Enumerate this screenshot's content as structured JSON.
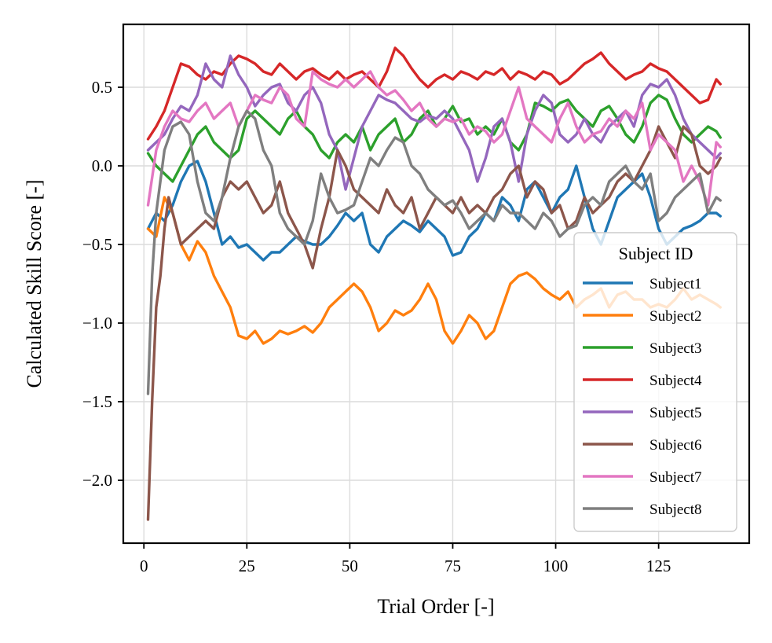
{
  "chart_data": {
    "type": "line",
    "title": "",
    "xlabel": "Trial Order [-]",
    "ylabel": "Calculated Skill Score [-]",
    "xlim": [
      -5,
      147
    ],
    "ylim": [
      -2.4,
      0.9
    ],
    "xticks": [
      0,
      25,
      50,
      75,
      100,
      125
    ],
    "yticks": [
      0.5,
      0.0,
      -0.5,
      -1.0,
      -1.5,
      -2.0
    ],
    "xtick_labels": [
      "0",
      "25",
      "50",
      "75",
      "100",
      "125"
    ],
    "ytick_labels": [
      "0.5",
      "0.0",
      "−0.5",
      "−1.0",
      "−1.5",
      "−2.0"
    ],
    "grid": true,
    "legend": {
      "title": "Subject ID",
      "position": "lower-right"
    },
    "series": [
      {
        "name": "Subject1",
        "color": "#1f77b4",
        "x": [
          1,
          3,
          5,
          7,
          9,
          11,
          13,
          15,
          17,
          19,
          21,
          23,
          25,
          27,
          29,
          31,
          33,
          35,
          37,
          39,
          41,
          43,
          45,
          47,
          49,
          51,
          53,
          55,
          57,
          59,
          61,
          63,
          65,
          67,
          69,
          71,
          73,
          75,
          77,
          79,
          81,
          83,
          85,
          87,
          89,
          91,
          93,
          95,
          97,
          99,
          101,
          103,
          105,
          107,
          109,
          111,
          113,
          115,
          117,
          119,
          121,
          123,
          125,
          127,
          129,
          131,
          133,
          135,
          137,
          139,
          140
        ],
        "values": [
          -0.4,
          -0.3,
          -0.35,
          -0.25,
          -0.1,
          0.0,
          0.03,
          -0.1,
          -0.3,
          -0.5,
          -0.45,
          -0.52,
          -0.5,
          -0.55,
          -0.6,
          -0.55,
          -0.55,
          -0.5,
          -0.45,
          -0.48,
          -0.5,
          -0.5,
          -0.45,
          -0.38,
          -0.3,
          -0.35,
          -0.3,
          -0.5,
          -0.55,
          -0.45,
          -0.4,
          -0.35,
          -0.38,
          -0.42,
          -0.35,
          -0.4,
          -0.45,
          -0.57,
          -0.55,
          -0.45,
          -0.4,
          -0.3,
          -0.35,
          -0.2,
          -0.25,
          -0.35,
          -0.15,
          -0.1,
          -0.2,
          -0.3,
          -0.2,
          -0.15,
          0.0,
          -0.2,
          -0.4,
          -0.5,
          -0.35,
          -0.2,
          -0.15,
          -0.1,
          -0.05,
          -0.2,
          -0.4,
          -0.5,
          -0.45,
          -0.4,
          -0.38,
          -0.35,
          -0.3,
          -0.3,
          -0.32
        ]
      },
      {
        "name": "Subject2",
        "color": "#ff7f0e",
        "x": [
          1,
          3,
          5,
          7,
          9,
          11,
          13,
          15,
          17,
          19,
          21,
          23,
          25,
          27,
          29,
          31,
          33,
          35,
          37,
          39,
          41,
          43,
          45,
          47,
          49,
          51,
          53,
          55,
          57,
          59,
          61,
          63,
          65,
          67,
          69,
          71,
          73,
          75,
          77,
          79,
          81,
          83,
          85,
          87,
          89,
          91,
          93,
          95,
          97,
          99,
          101,
          103,
          105,
          107,
          109,
          111,
          113,
          115,
          117,
          119,
          121,
          123,
          125,
          127,
          129,
          131,
          133,
          135,
          137,
          139,
          140
        ],
        "values": [
          -0.4,
          -0.45,
          -0.2,
          -0.3,
          -0.5,
          -0.6,
          -0.48,
          -0.55,
          -0.7,
          -0.8,
          -0.9,
          -1.08,
          -1.1,
          -1.05,
          -1.13,
          -1.1,
          -1.05,
          -1.07,
          -1.05,
          -1.02,
          -1.06,
          -1.0,
          -0.9,
          -0.85,
          -0.8,
          -0.75,
          -0.8,
          -0.9,
          -1.05,
          -1.0,
          -0.92,
          -0.95,
          -0.92,
          -0.85,
          -0.75,
          -0.85,
          -1.05,
          -1.13,
          -1.05,
          -0.95,
          -1.0,
          -1.1,
          -1.05,
          -0.9,
          -0.75,
          -0.7,
          -0.68,
          -0.72,
          -0.78,
          -0.82,
          -0.85,
          -0.8,
          -0.9,
          -0.85,
          -0.82,
          -0.78,
          -0.9,
          -0.82,
          -0.8,
          -0.85,
          -0.85,
          -0.9,
          -0.88,
          -0.9,
          -0.85,
          -0.78,
          -0.85,
          -0.82,
          -0.85,
          -0.88,
          -0.9
        ]
      },
      {
        "name": "Subject3",
        "color": "#2ca02c",
        "x": [
          1,
          3,
          5,
          7,
          9,
          11,
          13,
          15,
          17,
          19,
          21,
          23,
          25,
          27,
          29,
          31,
          33,
          35,
          37,
          39,
          41,
          43,
          45,
          47,
          49,
          51,
          53,
          55,
          57,
          59,
          61,
          63,
          65,
          67,
          69,
          71,
          73,
          75,
          77,
          79,
          81,
          83,
          85,
          87,
          89,
          91,
          93,
          95,
          97,
          99,
          101,
          103,
          105,
          107,
          109,
          111,
          113,
          115,
          117,
          119,
          121,
          123,
          125,
          127,
          129,
          131,
          133,
          135,
          137,
          139,
          140
        ],
        "values": [
          0.08,
          0.0,
          -0.05,
          -0.1,
          0.0,
          0.1,
          0.2,
          0.25,
          0.15,
          0.1,
          0.05,
          0.1,
          0.3,
          0.35,
          0.3,
          0.25,
          0.2,
          0.3,
          0.35,
          0.25,
          0.2,
          0.1,
          0.05,
          0.15,
          0.2,
          0.15,
          0.25,
          0.1,
          0.2,
          0.25,
          0.3,
          0.15,
          0.2,
          0.3,
          0.35,
          0.25,
          0.3,
          0.38,
          0.28,
          0.3,
          0.2,
          0.25,
          0.2,
          0.3,
          0.15,
          0.1,
          0.2,
          0.4,
          0.38,
          0.35,
          0.4,
          0.42,
          0.35,
          0.3,
          0.25,
          0.35,
          0.38,
          0.3,
          0.2,
          0.15,
          0.25,
          0.4,
          0.45,
          0.42,
          0.3,
          0.2,
          0.15,
          0.2,
          0.25,
          0.22,
          0.18
        ]
      },
      {
        "name": "Subject4",
        "color": "#d62728",
        "x": [
          1,
          3,
          5,
          7,
          9,
          11,
          13,
          15,
          17,
          19,
          21,
          23,
          25,
          27,
          29,
          31,
          33,
          35,
          37,
          39,
          41,
          43,
          45,
          47,
          49,
          51,
          53,
          55,
          57,
          59,
          61,
          63,
          65,
          67,
          69,
          71,
          73,
          75,
          77,
          79,
          81,
          83,
          85,
          87,
          89,
          91,
          93,
          95,
          97,
          99,
          101,
          103,
          105,
          107,
          109,
          111,
          113,
          115,
          117,
          119,
          121,
          123,
          125,
          127,
          129,
          131,
          133,
          135,
          137,
          139,
          140
        ],
        "values": [
          0.17,
          0.25,
          0.35,
          0.5,
          0.65,
          0.63,
          0.58,
          0.55,
          0.6,
          0.58,
          0.65,
          0.7,
          0.68,
          0.65,
          0.6,
          0.58,
          0.65,
          0.6,
          0.55,
          0.6,
          0.62,
          0.58,
          0.55,
          0.6,
          0.55,
          0.58,
          0.6,
          0.55,
          0.5,
          0.6,
          0.75,
          0.7,
          0.62,
          0.55,
          0.5,
          0.55,
          0.58,
          0.55,
          0.6,
          0.58,
          0.55,
          0.6,
          0.58,
          0.62,
          0.55,
          0.6,
          0.58,
          0.55,
          0.6,
          0.58,
          0.52,
          0.55,
          0.6,
          0.65,
          0.68,
          0.72,
          0.65,
          0.6,
          0.55,
          0.58,
          0.6,
          0.65,
          0.62,
          0.6,
          0.55,
          0.5,
          0.45,
          0.4,
          0.42,
          0.55,
          0.52
        ]
      },
      {
        "name": "Subject5",
        "color": "#9467bd",
        "x": [
          1,
          3,
          5,
          7,
          9,
          11,
          13,
          15,
          17,
          19,
          21,
          23,
          25,
          27,
          29,
          31,
          33,
          35,
          37,
          39,
          41,
          43,
          45,
          47,
          49,
          51,
          53,
          55,
          57,
          59,
          61,
          63,
          65,
          67,
          69,
          71,
          73,
          75,
          77,
          79,
          81,
          83,
          85,
          87,
          89,
          91,
          93,
          95,
          97,
          99,
          101,
          103,
          105,
          107,
          109,
          111,
          113,
          115,
          117,
          119,
          121,
          123,
          125,
          127,
          129,
          131,
          133,
          135,
          137,
          139,
          140
        ],
        "values": [
          0.1,
          0.15,
          0.2,
          0.3,
          0.38,
          0.35,
          0.45,
          0.65,
          0.55,
          0.5,
          0.7,
          0.58,
          0.5,
          0.38,
          0.45,
          0.5,
          0.52,
          0.4,
          0.35,
          0.45,
          0.5,
          0.4,
          0.2,
          0.1,
          -0.15,
          0.05,
          0.25,
          0.35,
          0.45,
          0.42,
          0.4,
          0.35,
          0.3,
          0.28,
          0.32,
          0.3,
          0.35,
          0.3,
          0.2,
          0.1,
          -0.1,
          0.05,
          0.25,
          0.3,
          0.15,
          -0.1,
          0.2,
          0.35,
          0.45,
          0.4,
          0.2,
          0.15,
          0.2,
          0.3,
          0.2,
          0.15,
          0.25,
          0.3,
          0.35,
          0.25,
          0.45,
          0.52,
          0.5,
          0.55,
          0.45,
          0.3,
          0.2,
          0.15,
          0.1,
          0.05,
          0.08
        ]
      },
      {
        "name": "Subject6",
        "color": "#8c564b",
        "x": [
          1,
          2,
          3,
          4,
          5,
          6,
          7,
          9,
          11,
          13,
          15,
          17,
          19,
          21,
          23,
          25,
          27,
          29,
          31,
          33,
          35,
          37,
          39,
          41,
          43,
          45,
          47,
          49,
          51,
          53,
          55,
          57,
          59,
          61,
          63,
          65,
          67,
          69,
          71,
          73,
          75,
          77,
          79,
          81,
          83,
          85,
          87,
          89,
          91,
          93,
          95,
          97,
          99,
          101,
          103,
          105,
          107,
          109,
          111,
          113,
          115,
          117,
          119,
          121,
          123,
          125,
          127,
          129,
          131,
          133,
          135,
          137,
          139,
          140
        ],
        "values": [
          -2.25,
          -1.5,
          -0.9,
          -0.7,
          -0.4,
          -0.2,
          -0.3,
          -0.5,
          -0.45,
          -0.4,
          -0.35,
          -0.4,
          -0.2,
          -0.1,
          -0.15,
          -0.1,
          -0.2,
          -0.3,
          -0.25,
          -0.1,
          -0.3,
          -0.4,
          -0.5,
          -0.65,
          -0.4,
          -0.2,
          0.1,
          0.0,
          -0.15,
          -0.2,
          -0.25,
          -0.3,
          -0.15,
          -0.25,
          -0.3,
          -0.2,
          -0.4,
          -0.3,
          -0.2,
          -0.25,
          -0.3,
          -0.2,
          -0.3,
          -0.25,
          -0.3,
          -0.2,
          -0.15,
          -0.05,
          0.0,
          -0.2,
          -0.1,
          -0.15,
          -0.3,
          -0.25,
          -0.4,
          -0.35,
          -0.2,
          -0.3,
          -0.25,
          -0.2,
          -0.1,
          -0.05,
          -0.1,
          0.0,
          0.1,
          0.25,
          0.15,
          0.05,
          0.25,
          0.2,
          0.0,
          -0.05,
          0.0,
          0.05
        ]
      },
      {
        "name": "Subject7",
        "color": "#e377c2",
        "x": [
          1,
          3,
          5,
          7,
          9,
          11,
          13,
          15,
          17,
          19,
          21,
          23,
          25,
          27,
          29,
          31,
          33,
          35,
          37,
          39,
          41,
          43,
          45,
          47,
          49,
          51,
          53,
          55,
          57,
          59,
          61,
          63,
          65,
          67,
          69,
          71,
          73,
          75,
          77,
          79,
          81,
          83,
          85,
          87,
          89,
          91,
          93,
          95,
          97,
          99,
          101,
          103,
          105,
          107,
          109,
          111,
          113,
          115,
          117,
          119,
          121,
          123,
          125,
          127,
          129,
          131,
          133,
          135,
          137,
          139,
          140
        ],
        "values": [
          -0.25,
          0.1,
          0.25,
          0.35,
          0.3,
          0.28,
          0.35,
          0.4,
          0.3,
          0.35,
          0.4,
          0.25,
          0.35,
          0.45,
          0.42,
          0.4,
          0.5,
          0.45,
          0.3,
          0.25,
          0.6,
          0.55,
          0.52,
          0.5,
          0.55,
          0.5,
          0.55,
          0.6,
          0.5,
          0.45,
          0.48,
          0.42,
          0.35,
          0.4,
          0.3,
          0.25,
          0.3,
          0.28,
          0.3,
          0.2,
          0.25,
          0.22,
          0.15,
          0.2,
          0.35,
          0.5,
          0.3,
          0.25,
          0.2,
          0.15,
          0.3,
          0.4,
          0.25,
          0.15,
          0.2,
          0.22,
          0.3,
          0.25,
          0.35,
          0.3,
          0.4,
          0.1,
          0.2,
          0.15,
          0.1,
          -0.1,
          0.0,
          -0.1,
          -0.25,
          0.15,
          0.12
        ]
      },
      {
        "name": "Subject8",
        "color": "#7f7f7f",
        "x": [
          1,
          2,
          3,
          5,
          7,
          9,
          11,
          13,
          15,
          17,
          19,
          21,
          23,
          25,
          27,
          29,
          31,
          33,
          35,
          37,
          39,
          41,
          43,
          45,
          47,
          49,
          51,
          53,
          55,
          57,
          59,
          61,
          63,
          65,
          67,
          69,
          71,
          73,
          75,
          77,
          79,
          81,
          83,
          85,
          87,
          89,
          91,
          93,
          95,
          97,
          99,
          101,
          103,
          105,
          107,
          109,
          111,
          113,
          115,
          117,
          119,
          121,
          123,
          125,
          127,
          129,
          131,
          133,
          135,
          137,
          139,
          140
        ],
        "values": [
          -1.45,
          -0.7,
          -0.3,
          0.1,
          0.25,
          0.28,
          0.2,
          -0.1,
          -0.3,
          -0.35,
          -0.2,
          0.05,
          0.25,
          0.35,
          0.3,
          0.1,
          0.0,
          -0.3,
          -0.4,
          -0.45,
          -0.5,
          -0.35,
          -0.05,
          -0.2,
          -0.3,
          -0.28,
          -0.25,
          -0.1,
          0.05,
          0.0,
          0.1,
          0.18,
          0.15,
          0.0,
          -0.05,
          -0.15,
          -0.2,
          -0.25,
          -0.22,
          -0.3,
          -0.4,
          -0.35,
          -0.3,
          -0.35,
          -0.25,
          -0.3,
          -0.3,
          -0.35,
          -0.4,
          -0.3,
          -0.35,
          -0.45,
          -0.4,
          -0.38,
          -0.25,
          -0.2,
          -0.25,
          -0.1,
          -0.05,
          0.0,
          -0.1,
          -0.15,
          -0.05,
          -0.35,
          -0.3,
          -0.2,
          -0.15,
          -0.1,
          -0.05,
          -0.3,
          -0.2,
          -0.22
        ]
      }
    ]
  }
}
